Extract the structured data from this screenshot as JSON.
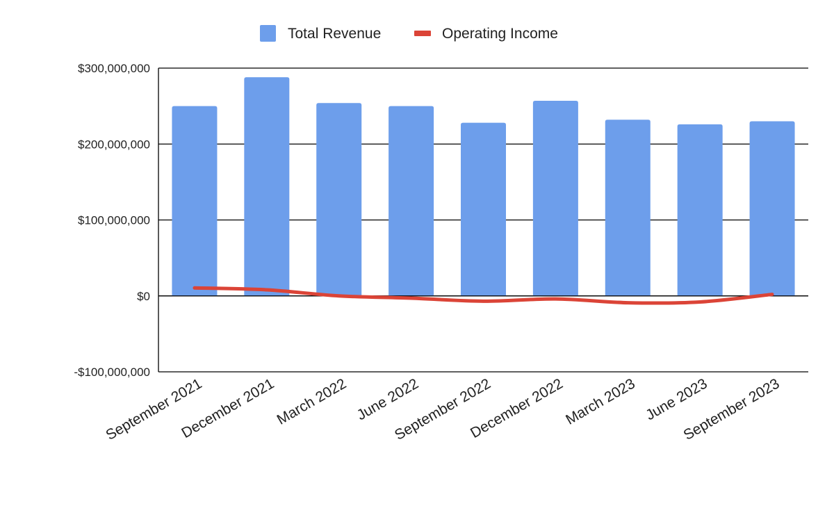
{
  "chart_data": {
    "type": "bar",
    "title": "",
    "xlabel": "",
    "ylabel": "",
    "categories": [
      "September 2021",
      "December 2021",
      "March 2022",
      "June 2022",
      "September 2022",
      "December 2022",
      "March 2023",
      "June 2023",
      "September 2023"
    ],
    "series": [
      {
        "name": "Total Revenue",
        "type": "bar",
        "color": "#6d9eeb",
        "values": [
          250000000,
          288000000,
          254000000,
          250000000,
          228000000,
          257000000,
          232000000,
          226000000,
          230000000
        ]
      },
      {
        "name": "Operating Income",
        "type": "line",
        "color": "#db4437",
        "smooth": true,
        "values": [
          10500000,
          8000000,
          0,
          -3000000,
          -7000000,
          -4000000,
          -9000000,
          -8000000,
          2000000
        ]
      }
    ],
    "ylim": [
      -100000000,
      300000000
    ],
    "yticks": [
      -100000000,
      0,
      100000000,
      200000000,
      300000000
    ],
    "ytick_labels": [
      "-$100,000,000",
      "$0",
      "$100,000,000",
      "$200,000,000",
      "$300,000,000"
    ],
    "grid": true,
    "legend_position": "top-center"
  }
}
